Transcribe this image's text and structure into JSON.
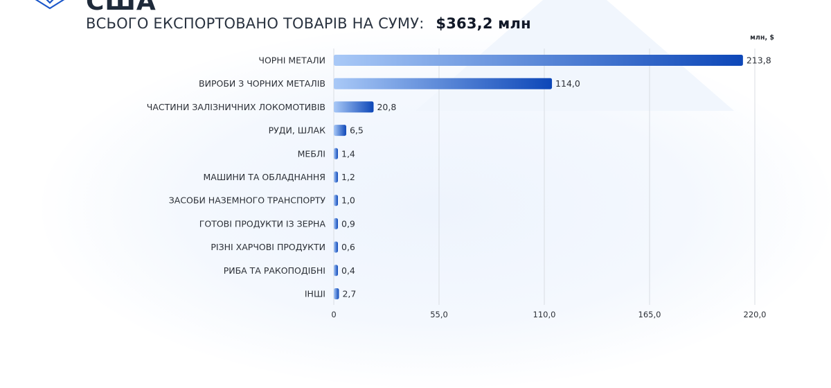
{
  "header": {
    "country": "США",
    "subtitle": "ВСЬОГО ЕКСПОРТОВАНО ТОВАРІВ НА СУМУ:",
    "total": "$363,2 млн"
  },
  "chart_data": {
    "type": "bar",
    "orientation": "horizontal",
    "unit_label": "млн, $",
    "categories": [
      "ЧОРНІ МЕТАЛИ",
      "ВИРОБИ З ЧОРНИХ МЕТАЛІВ",
      "ЧАСТИНИ ЗАЛІЗНИЧНИХ ЛОКОМОТИВІВ",
      "РУДИ, ШЛАК",
      "МЕБЛІ",
      "МАШИНИ ТА ОБЛАДНАННЯ",
      "ЗАСОБИ НАЗЕМНОГО ТРАНСПОРТУ",
      "ГОТОВІ ПРОДУКТИ ІЗ ЗЕРНА",
      "РІЗНІ ХАРЧОВІ ПРОДУКТИ",
      "РИБА ТА РАКОПОДІБНІ",
      "ІНШІ"
    ],
    "values": [
      213.8,
      114.0,
      20.8,
      6.5,
      1.4,
      1.2,
      1.0,
      0.9,
      0.6,
      0.4,
      2.7
    ],
    "value_labels": [
      "213,8",
      "114,0",
      "20,8",
      "6,5",
      "1,4",
      "1,2",
      "1,0",
      "0,9",
      "0,6",
      "0,4",
      "2,7"
    ],
    "xlim": [
      0,
      220
    ],
    "xticks": [
      0,
      55,
      110,
      165,
      220
    ],
    "xtick_labels": [
      "0",
      "55,0",
      "110,0",
      "165,0",
      "220,0"
    ],
    "grid": "vertical",
    "colors": {
      "bar_start": "#a9c9f7",
      "bar_end": "#0d47b8",
      "grid": "#d9dde3"
    }
  }
}
